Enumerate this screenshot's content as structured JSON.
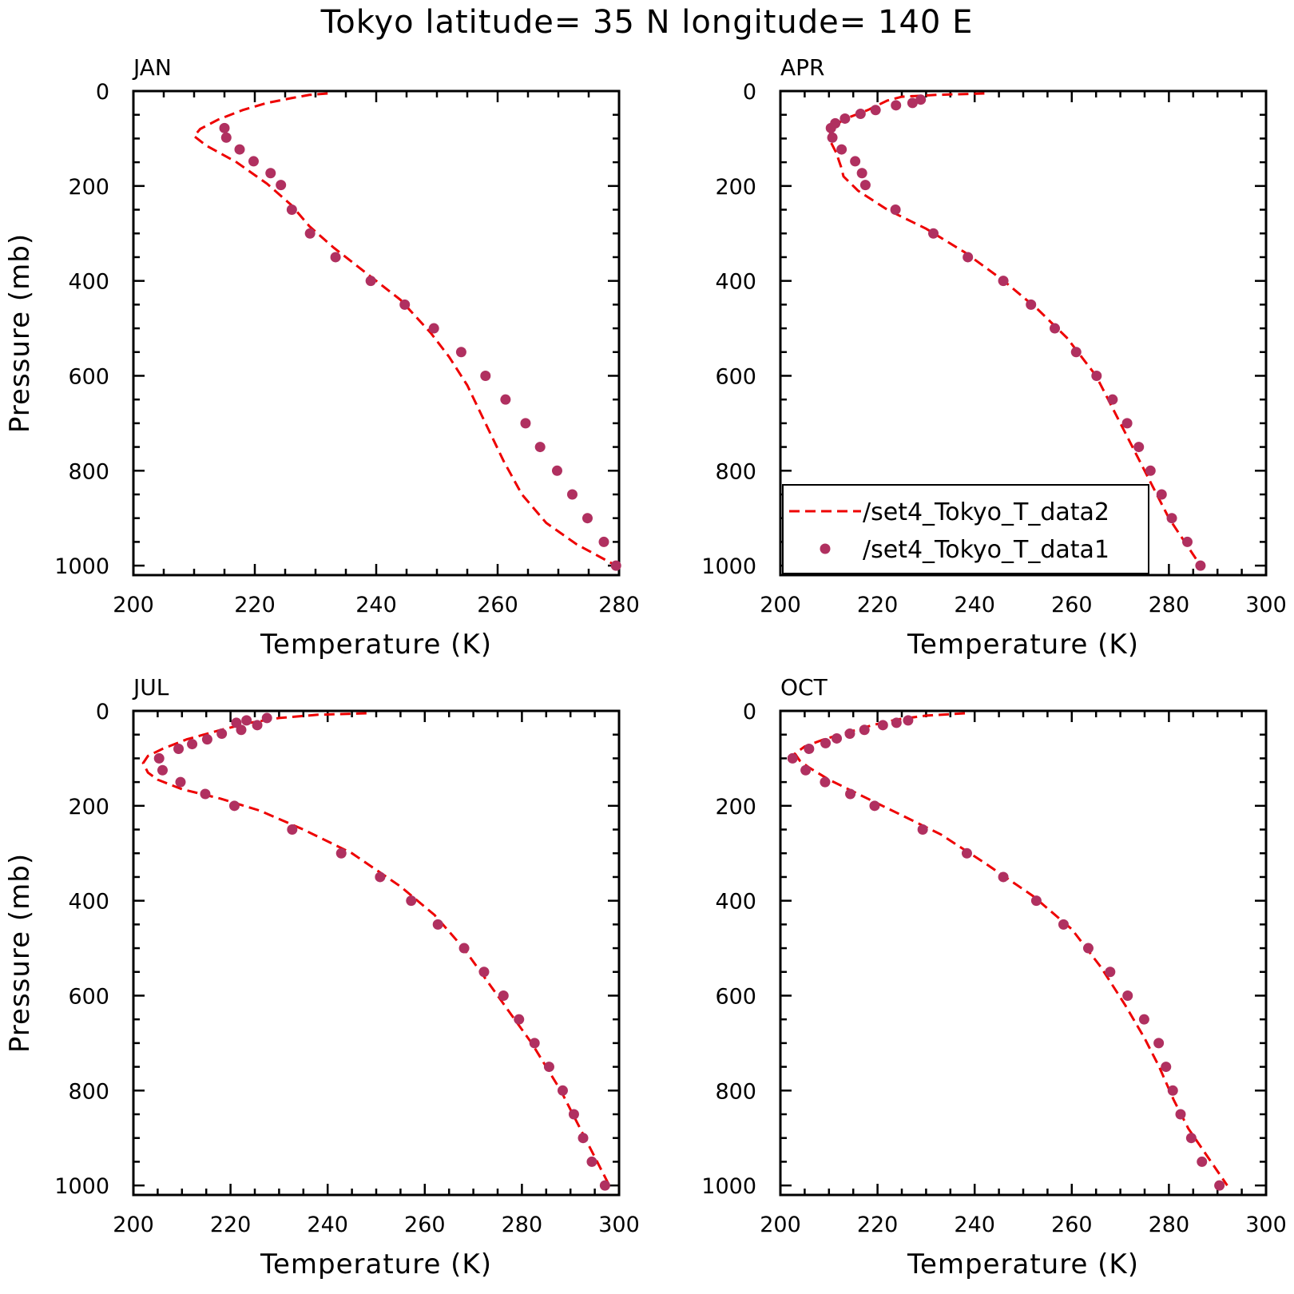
{
  "title": "Tokyo  latitude= 35 N longitude= 140 E",
  "colors": {
    "line": "#ee0000",
    "points": "#b03060"
  },
  "legend": {
    "panel": 1,
    "line_label": "/set4_Tokyo_T_data2",
    "points_label": "/set4_Tokyo_T_data1"
  },
  "chart_data": [
    {
      "type": "line",
      "panel_label": "JAN",
      "xlabel": "Temperature (K)",
      "ylabel": "Pressure (mb)",
      "xlim": [
        200,
        280
      ],
      "ylim": [
        0,
        1020
      ],
      "y_inverted": true,
      "xticks": [
        200,
        220,
        240,
        260,
        280
      ],
      "yticks": [
        0,
        200,
        400,
        600,
        800,
        1000
      ],
      "series": [
        {
          "name": "/set4_Tokyo_T_data2",
          "style": "dashed-line",
          "x": [
            232,
            229,
            226,
            222,
            218,
            214,
            211,
            210,
            212,
            217,
            222,
            226,
            229,
            233,
            238,
            244,
            249,
            252,
            255,
            258,
            261,
            264,
            268,
            273,
            279.5
          ],
          "y": [
            5,
            8,
            15,
            25,
            40,
            60,
            80,
            95,
            115,
            150,
            195,
            240,
            285,
            330,
            380,
            440,
            510,
            560,
            620,
            700,
            780,
            850,
            910,
            955,
            1000
          ]
        },
        {
          "name": "/set4_Tokyo_T_data1",
          "style": "points",
          "x": [
            215,
            215.3,
            217.5,
            219.8,
            222.6,
            224.3,
            226.1,
            229.1,
            233.3,
            239.1,
            244.7,
            249.5,
            254,
            258,
            261.3,
            264.6,
            267,
            269.8,
            272.3,
            274.8,
            277.5,
            279.5
          ],
          "y": [
            78,
            98,
            123,
            148,
            173,
            198,
            250,
            300,
            350,
            400,
            450,
            500,
            550,
            600,
            650,
            700,
            750,
            800,
            850,
            900,
            950,
            1000
          ]
        }
      ]
    },
    {
      "type": "line",
      "panel_label": "APR",
      "xlabel": "Temperature (K)",
      "ylabel": "",
      "xlim": [
        200,
        300
      ],
      "ylim": [
        0,
        1020
      ],
      "y_inverted": true,
      "xticks": [
        200,
        220,
        240,
        260,
        280,
        300
      ],
      "yticks": [
        0,
        200,
        400,
        600,
        800,
        1000
      ],
      "series": [
        {
          "name": "/set4_Tokyo_T_data2",
          "style": "dashed-line",
          "x": [
            242,
            232,
            225,
            222,
            218,
            213,
            210.5,
            210,
            211.5,
            212.5,
            213,
            216,
            222,
            230,
            238,
            246,
            253,
            259,
            265,
            270,
            275,
            280,
            286.5
          ],
          "y": [
            5,
            8,
            12,
            20,
            40,
            60,
            80,
            100,
            130,
            160,
            180,
            210,
            250,
            290,
            340,
            400,
            460,
            520,
            600,
            700,
            800,
            900,
            1000
          ]
        },
        {
          "name": "/set4_Tokyo_T_data1",
          "style": "points",
          "x": [
            228.9,
            227.2,
            223.8,
            219.6,
            216.5,
            213.3,
            211.3,
            210.4,
            210.7,
            212.6,
            215.4,
            216.8,
            217.5,
            223.7,
            231.5,
            238.6,
            245.9,
            251.6,
            256.5,
            260.9,
            265.1,
            268.4,
            271.4,
            273.8,
            276.2,
            278.5,
            280.6,
            283.8,
            286.5
          ],
          "y": [
            18,
            25,
            30,
            40,
            48,
            58,
            68,
            78,
            98,
            123,
            148,
            173,
            198,
            250,
            300,
            350,
            400,
            450,
            500,
            550,
            600,
            650,
            700,
            750,
            800,
            850,
            900,
            950,
            1000
          ]
        }
      ]
    },
    {
      "type": "line",
      "panel_label": "JUL",
      "xlabel": "Temperature (K)",
      "ylabel": "Pressure (mb)",
      "xlim": [
        200,
        300
      ],
      "ylim": [
        0,
        1020
      ],
      "y_inverted": true,
      "xticks": [
        200,
        220,
        240,
        260,
        280,
        300
      ],
      "yticks": [
        0,
        200,
        400,
        600,
        800,
        1000
      ],
      "series": [
        {
          "name": "/set4_Tokyo_T_data2",
          "style": "dashed-line",
          "x": [
            248,
            238,
            230,
            224,
            218,
            211,
            206,
            203,
            202,
            203,
            205,
            210,
            218,
            226,
            235,
            245,
            255,
            262,
            268,
            275,
            282,
            288,
            293,
            298
          ],
          "y": [
            5,
            8,
            15,
            25,
            40,
            60,
            80,
            95,
            110,
            130,
            145,
            165,
            185,
            210,
            250,
            300,
            370,
            430,
            500,
            600,
            700,
            800,
            900,
            1000
          ]
        },
        {
          "name": "/set4_Tokyo_T_data1",
          "style": "points",
          "x": [
            227.5,
            223.3,
            221.2,
            222.2,
            225.5,
            218.2,
            215.2,
            212.1,
            209.3,
            205.3,
            206,
            209.7,
            214.8,
            220.8,
            232.7,
            242.8,
            250.8,
            257.2,
            262.7,
            268.1,
            272.2,
            276.2,
            279.4,
            282.6,
            285.6,
            288.4,
            290.7,
            292.6,
            294.4,
            297.1
          ],
          "y": [
            15,
            20,
            25,
            40,
            30,
            48,
            60,
            70,
            80,
            100,
            125,
            150,
            175,
            200,
            250,
            300,
            350,
            400,
            450,
            500,
            550,
            600,
            650,
            700,
            750,
            800,
            850,
            900,
            950,
            1000
          ]
        }
      ]
    },
    {
      "type": "line",
      "panel_label": "OCT",
      "xlabel": "Temperature (K)",
      "ylabel": "",
      "xlim": [
        200,
        300
      ],
      "ylim": [
        0,
        1020
      ],
      "y_inverted": true,
      "xticks": [
        200,
        220,
        240,
        260,
        280,
        300
      ],
      "yticks": [
        0,
        200,
        400,
        600,
        800,
        1000
      ],
      "series": [
        {
          "name": "/set4_Tokyo_T_data2",
          "style": "dashed-line",
          "x": [
            238,
            230,
            224,
            219,
            214,
            209,
            205,
            203,
            204,
            206,
            210,
            216,
            224,
            233,
            242,
            252,
            260,
            266,
            271,
            275,
            278,
            281,
            284,
            292
          ],
          "y": [
            5,
            10,
            18,
            30,
            45,
            60,
            75,
            90,
            105,
            120,
            145,
            175,
            215,
            260,
            320,
            390,
            460,
            540,
            620,
            690,
            750,
            820,
            880,
            1000
          ]
        },
        {
          "name": "/set4_Tokyo_T_data1",
          "style": "points",
          "x": [
            226.3,
            223.9,
            221.1,
            217.3,
            214.3,
            211.6,
            209.3,
            205.9,
            202.5,
            205.2,
            209.2,
            214.4,
            219.4,
            229.3,
            238.4,
            245.9,
            252.7,
            258.3,
            263.4,
            267.9,
            271.5,
            274.9,
            277.9,
            279.4,
            280.8,
            282.4,
            284.6,
            286.8,
            290.4
          ],
          "y": [
            20,
            25,
            30,
            40,
            48,
            58,
            68,
            80,
            100,
            125,
            150,
            175,
            200,
            250,
            300,
            350,
            400,
            450,
            500,
            550,
            600,
            650,
            700,
            750,
            800,
            850,
            900,
            950,
            1000
          ]
        }
      ]
    }
  ]
}
